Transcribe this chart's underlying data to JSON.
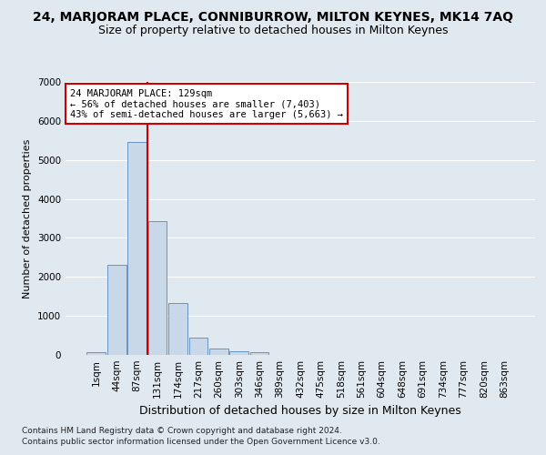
{
  "title": "24, MARJORAM PLACE, CONNIBURROW, MILTON KEYNES, MK14 7AQ",
  "subtitle": "Size of property relative to detached houses in Milton Keynes",
  "xlabel": "Distribution of detached houses by size in Milton Keynes",
  "ylabel": "Number of detached properties",
  "footer1": "Contains HM Land Registry data © Crown copyright and database right 2024.",
  "footer2": "Contains public sector information licensed under the Open Government Licence v3.0.",
  "bar_labels": [
    "1sqm",
    "44sqm",
    "87sqm",
    "131sqm",
    "174sqm",
    "217sqm",
    "260sqm",
    "303sqm",
    "346sqm",
    "389sqm",
    "432sqm",
    "475sqm",
    "518sqm",
    "561sqm",
    "604sqm",
    "648sqm",
    "691sqm",
    "734sqm",
    "777sqm",
    "820sqm",
    "863sqm"
  ],
  "bar_values": [
    80,
    2300,
    5450,
    3430,
    1320,
    440,
    160,
    100,
    60,
    0,
    0,
    0,
    0,
    0,
    0,
    0,
    0,
    0,
    0,
    0,
    0
  ],
  "bar_color": "#c8d8e8",
  "bar_edge_color": "#5588bb",
  "vline_color": "#cc0000",
  "vline_x": 2.5,
  "annotation_text": "24 MARJORAM PLACE: 129sqm\n← 56% of detached houses are smaller (7,403)\n43% of semi-detached houses are larger (5,663) →",
  "annotation_box_color": "#ffffff",
  "annotation_border_color": "#cc0000",
  "ylim": [
    0,
    7000
  ],
  "yticks": [
    0,
    1000,
    2000,
    3000,
    4000,
    5000,
    6000,
    7000
  ],
  "background_color": "#e0e8f0",
  "grid_color": "#ffffff",
  "title_fontsize": 10,
  "subtitle_fontsize": 9,
  "xlabel_fontsize": 9,
  "ylabel_fontsize": 8,
  "tick_fontsize": 7.5,
  "footer_fontsize": 6.5
}
